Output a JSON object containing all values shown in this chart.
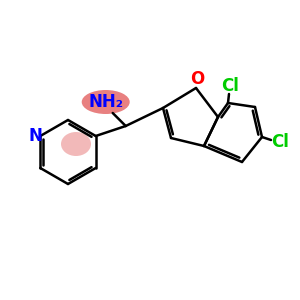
{
  "title": "",
  "background_color": "#ffffff",
  "bond_color": "#000000",
  "atom_colors": {
    "N_pyridine": "#0000ff",
    "O": "#ff0000",
    "Cl": "#00cc00",
    "NH2": "#0000ff",
    "NH2_bg": "#e88080"
  },
  "figsize": [
    3.0,
    3.0
  ],
  "dpi": 100
}
